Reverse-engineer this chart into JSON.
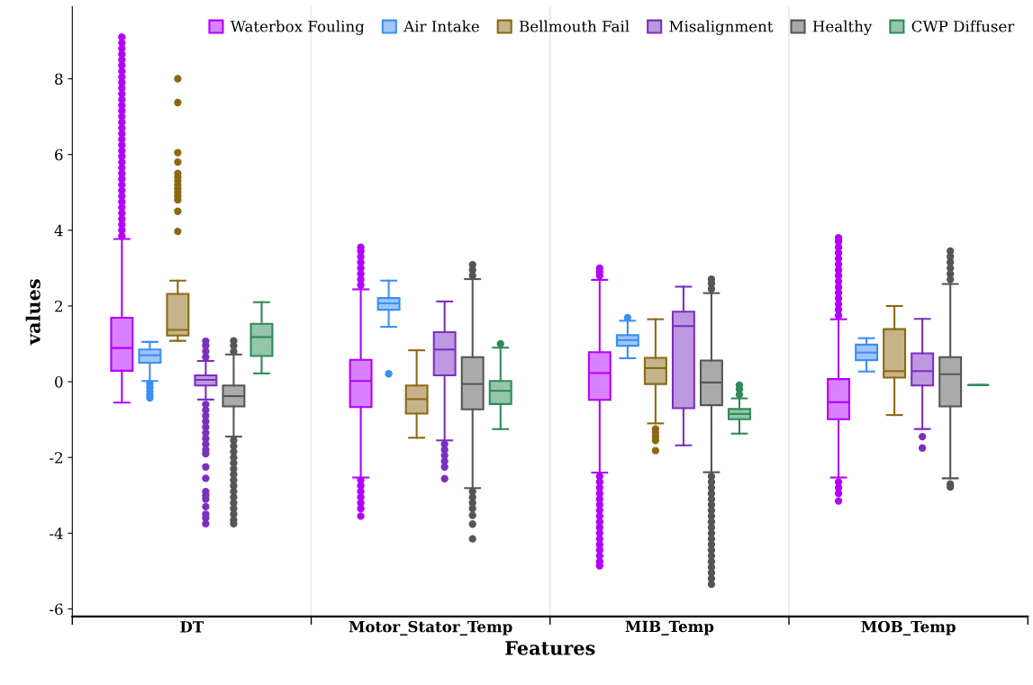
{
  "chart_data": {
    "type": "box",
    "xlabel": "Features",
    "ylabel": "values",
    "categories": [
      "DT",
      "Motor_Stator_Temp",
      "MIB_Temp",
      "MOB_Temp"
    ],
    "ylim": [
      -6.2,
      9.9
    ],
    "yticks": [
      -6,
      -4,
      -2,
      0,
      2,
      4,
      6,
      8
    ],
    "grid": "x",
    "legend": "top right",
    "series": [
      {
        "name": "Waterbox Fouling",
        "color": "#b300ff",
        "boxes": [
          {
            "low": -0.55,
            "q1": 0.29,
            "median": 0.89,
            "q3": 1.69,
            "high": 3.77,
            "outliers": [
              3.85,
              4.0,
              4.15,
              4.3,
              4.45,
              4.6,
              4.75,
              4.9,
              5.05,
              5.2,
              5.35,
              5.5,
              5.65,
              5.8,
              5.95,
              6.1,
              6.25,
              6.4,
              6.55,
              6.7,
              6.85,
              7.0,
              7.15,
              7.3,
              7.45,
              7.6,
              7.75,
              7.9,
              8.05,
              8.2,
              8.35,
              8.5,
              8.65,
              8.8,
              8.95,
              9.1
            ]
          },
          {
            "low": -2.53,
            "q1": -0.67,
            "median": 0.02,
            "q3": 0.58,
            "high": 2.44,
            "outliers": [
              2.55,
              2.7,
              2.85,
              3.0,
              3.15,
              3.3,
              3.45,
              3.55,
              -2.6,
              -2.75,
              -2.9,
              -3.05,
              -3.2,
              -3.35,
              -3.55
            ]
          },
          {
            "low": -2.4,
            "q1": -0.48,
            "median": 0.23,
            "q3": 0.78,
            "high": 2.69,
            "outliers": [
              2.8,
              2.9,
              3.0,
              -2.5,
              -2.65,
              -2.8,
              -2.95,
              -3.1,
              -3.25,
              -3.4,
              -3.55,
              -3.7,
              -3.85,
              -4.0,
              -4.15,
              -4.3,
              -4.45,
              -4.6,
              -4.75,
              -4.86
            ]
          },
          {
            "low": -2.53,
            "q1": -0.99,
            "median": -0.54,
            "q3": 0.07,
            "high": 1.65,
            "outliers": [
              1.75,
              1.9,
              2.05,
              2.2,
              2.35,
              2.5,
              2.65,
              2.8,
              2.95,
              3.1,
              3.25,
              3.4,
              3.55,
              3.7,
              3.8,
              -2.65,
              -2.8,
              -2.95,
              -3.15
            ]
          }
        ]
      },
      {
        "name": "Air Intake",
        "color": "#3d8ef5",
        "boxes": [
          {
            "low": 0.02,
            "q1": 0.5,
            "median": 0.7,
            "q3": 0.85,
            "high": 1.05,
            "outliers": [
              -0.05,
              -0.15,
              -0.25,
              -0.35,
              -0.43
            ]
          },
          {
            "low": 1.45,
            "q1": 1.9,
            "median": 2.07,
            "q3": 2.21,
            "high": 2.67,
            "outliers": [
              0.21
            ]
          },
          {
            "low": 0.62,
            "q1": 0.95,
            "median": 1.1,
            "q3": 1.23,
            "high": 1.61,
            "outliers": [
              1.69
            ]
          },
          {
            "low": 0.27,
            "q1": 0.57,
            "median": 0.77,
            "q3": 0.98,
            "high": 1.15
          }
        ]
      },
      {
        "name": "Bellmouth Fail",
        "color": "#8b6914",
        "boxes": [
          {
            "low": 1.08,
            "q1": 1.22,
            "median": 1.37,
            "q3": 2.32,
            "high": 2.67,
            "outliers": [
              3.97,
              4.5,
              4.8,
              4.9,
              5.0,
              5.1,
              5.2,
              5.3,
              5.4,
              5.5,
              5.8,
              6.05,
              7.37,
              8.0
            ]
          },
          {
            "low": -1.48,
            "q1": -0.84,
            "median": -0.46,
            "q3": -0.1,
            "high": 0.83
          },
          {
            "low": -1.1,
            "q1": -0.06,
            "median": 0.36,
            "q3": 0.63,
            "high": 1.65,
            "outliers": [
              -1.25,
              -1.35,
              -1.45,
              -1.55,
              -1.82
            ]
          },
          {
            "low": -0.88,
            "q1": 0.11,
            "median": 0.28,
            "q3": 1.39,
            "high": 2.0
          }
        ]
      },
      {
        "name": "Misalignment",
        "color": "#7b2fbf",
        "boxes": [
          {
            "low": -0.47,
            "q1": -0.1,
            "median": 0.05,
            "q3": 0.17,
            "high": 0.55,
            "outliers": [
              0.65,
              0.8,
              0.95,
              1.07,
              -0.6,
              -0.75,
              -0.9,
              -1.05,
              -1.2,
              -1.35,
              -1.5,
              -1.65,
              -1.8,
              -1.9,
              -2.25,
              -2.55,
              -2.9,
              -3.0,
              -3.1,
              -3.3,
              -3.5,
              -3.6,
              -3.75
            ]
          },
          {
            "low": -1.55,
            "q1": 0.17,
            "median": 0.85,
            "q3": 1.31,
            "high": 2.12,
            "outliers": [
              -1.65,
              -1.8,
              -1.95,
              -2.1,
              -2.25,
              -2.56
            ]
          },
          {
            "low": -1.68,
            "q1": -0.7,
            "median": 1.47,
            "q3": 1.85,
            "high": 2.51
          },
          {
            "low": -1.25,
            "q1": -0.1,
            "median": 0.28,
            "q3": 0.75,
            "high": 1.66,
            "outliers": [
              -1.45,
              -1.75
            ]
          }
        ]
      },
      {
        "name": "Healthy",
        "color": "#555555",
        "boxes": [
          {
            "low": -1.45,
            "q1": -0.65,
            "median": -0.38,
            "q3": -0.1,
            "high": 0.72,
            "outliers": [
              0.8,
              0.95,
              1.08,
              -1.55,
              -1.7,
              -1.85,
              -2.0,
              -2.15,
              -2.3,
              -2.45,
              -2.6,
              -2.75,
              -2.9,
              -3.05,
              -3.2,
              -3.35,
              -3.5,
              -3.65,
              -3.75
            ]
          },
          {
            "low": -2.81,
            "q1": -0.73,
            "median": -0.06,
            "q3": 0.65,
            "high": 2.71,
            "outliers": [
              2.8,
              2.95,
              3.09,
              -2.9,
              -3.05,
              -3.2,
              -3.35,
              -3.53,
              -3.76,
              -4.15
            ]
          },
          {
            "low": -2.39,
            "q1": -0.62,
            "median": -0.02,
            "q3": 0.56,
            "high": 2.34,
            "outliers": [
              2.45,
              2.6,
              2.71,
              -2.5,
              -2.65,
              -2.8,
              -2.95,
              -3.1,
              -3.25,
              -3.4,
              -3.55,
              -3.7,
              -3.85,
              -4.0,
              -4.15,
              -4.3,
              -4.45,
              -4.6,
              -4.75,
              -4.9,
              -5.05,
              -5.2,
              -5.35
            ]
          },
          {
            "low": -2.55,
            "q1": -0.65,
            "median": 0.2,
            "q3": 0.65,
            "high": 2.58,
            "outliers": [
              2.7,
              2.85,
              3.0,
              3.15,
              3.3,
              3.45,
              -2.7,
              -2.78
            ]
          }
        ]
      },
      {
        "name": "CWP Diffuser",
        "color": "#2e8b57",
        "boxes": [
          {
            "low": 0.22,
            "q1": 0.68,
            "median": 1.18,
            "q3": 1.53,
            "high": 2.1
          },
          {
            "low": -1.25,
            "q1": -0.59,
            "median": -0.24,
            "q3": 0.02,
            "high": 0.9,
            "outliers": [
              1.0
            ]
          },
          {
            "low": -1.37,
            "q1": -0.99,
            "median": -0.85,
            "q3": -0.72,
            "high": -0.44,
            "outliers": [
              -0.09,
              -0.2,
              -0.34
            ]
          },
          {
            "low": -0.09,
            "q1": -0.09,
            "median": -0.09,
            "q3": -0.09,
            "high": -0.09
          }
        ]
      }
    ]
  }
}
